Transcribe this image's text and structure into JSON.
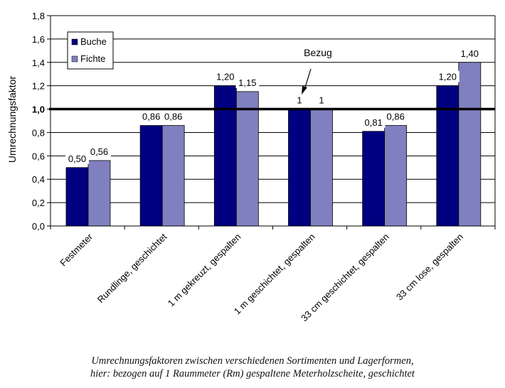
{
  "chart_data": {
    "type": "bar",
    "title": "",
    "xlabel": "",
    "ylabel": "Umrechnungsfaktor",
    "ylim": [
      0,
      1.8
    ],
    "yticks": [
      "0,0",
      "0,2",
      "0,4",
      "0,6",
      "0,8",
      "1,0",
      "1,2",
      "1,4",
      "1,6",
      "1,8"
    ],
    "ytick_values": [
      0,
      0.2,
      0.4,
      0.6,
      0.8,
      1.0,
      1.2,
      1.4,
      1.6,
      1.8
    ],
    "grid": true,
    "reference_line": {
      "value": 1.0
    },
    "legend": {
      "placement": "top-left",
      "entries": [
        "Buche",
        "Fichte"
      ]
    },
    "categories": [
      "Festmeter",
      "Rundlinge,  geschichtet",
      "1 m gekreuzt,  gespalten",
      "1 m geschichtet,  gespalten",
      "33 cm geschichtet,  gespalten",
      "33 cm lose,  gespalten"
    ],
    "series": [
      {
        "name": "Buche",
        "color": "#000080",
        "values": [
          0.5,
          0.86,
          1.2,
          1.0,
          0.81,
          1.2
        ],
        "labels": [
          "0,50",
          "0,86",
          "1,20",
          "1",
          "0,81",
          "1,20"
        ]
      },
      {
        "name": "Fichte",
        "color": "#8080C0",
        "values": [
          0.56,
          0.86,
          1.15,
          1.0,
          0.86,
          1.4
        ],
        "labels": [
          "0,56",
          "0,86",
          "1,15",
          "1",
          "0,86",
          "1,40"
        ]
      }
    ],
    "annotations": [
      {
        "text": "Bezug",
        "points_to": "1 m geschichtet,  gespalten / Buche"
      }
    ]
  },
  "caption": {
    "line1": "Umrechnungsfaktoren zwischen verschiedenen Sortimenten und Lagerformen,",
    "line2": "hier: bezogen auf 1 Raummeter (Rm) gespaltene Meterholzscheite, geschichtet"
  }
}
